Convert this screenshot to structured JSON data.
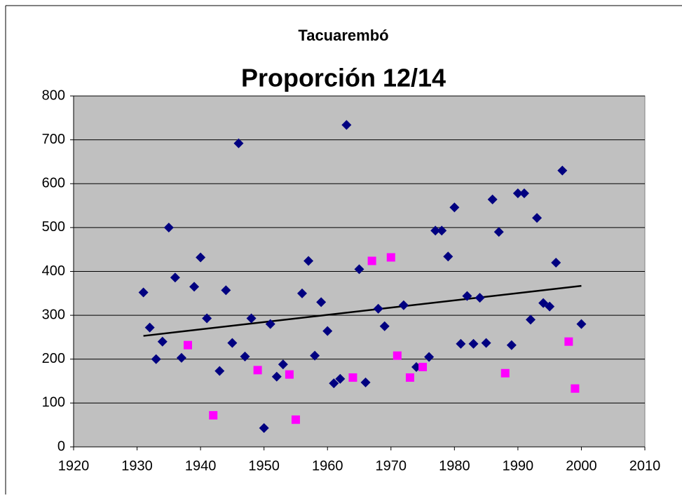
{
  "chart_data": {
    "type": "scatter",
    "title": "Tacuarembó",
    "subtitle": "Proporción 12/14",
    "xlim": [
      1920,
      2010
    ],
    "xticks": [
      1920,
      1930,
      1940,
      1950,
      1960,
      1970,
      1980,
      1990,
      2000,
      2010
    ],
    "ylim": [
      0,
      800
    ],
    "yticks": [
      0,
      100,
      200,
      300,
      400,
      500,
      600,
      700,
      800
    ],
    "grid": true,
    "plot_background": "#c0c0c0",
    "series": [
      {
        "color": "#000080",
        "marker": "diamond",
        "x": [
          1931,
          1932,
          1933,
          1934,
          1935,
          1936,
          1937,
          1939,
          1940,
          1941,
          1943,
          1944,
          1945,
          1946,
          1947,
          1948,
          1950,
          1951,
          1952,
          1953,
          1956,
          1957,
          1958,
          1959,
          1960,
          1961,
          1962,
          1963,
          1965,
          1966,
          1968,
          1969,
          1972,
          1974,
          1976,
          1977,
          1978,
          1979,
          1980,
          1981,
          1982,
          1983,
          1984,
          1985,
          1986,
          1987,
          1989,
          1990,
          1991,
          1992,
          1993,
          1994,
          1995,
          1996,
          1997,
          2000
        ],
        "values": [
          352,
          272,
          200,
          240,
          500,
          386,
          203,
          365,
          432,
          293,
          173,
          357,
          237,
          692,
          206,
          293,
          43,
          280,
          160,
          188,
          350,
          424,
          208,
          330,
          264,
          145,
          155,
          734,
          405,
          147,
          315,
          275,
          323,
          182,
          205,
          493,
          493,
          434,
          546,
          235,
          344,
          235,
          340,
          237,
          564,
          490,
          232,
          578,
          578,
          290,
          522,
          328,
          320,
          420,
          630,
          280
        ]
      },
      {
        "color": "#ff00ff",
        "marker": "square",
        "x": [
          1938,
          1942,
          1949,
          1954,
          1955,
          1964,
          1967,
          1970,
          1971,
          1973,
          1975,
          1988,
          1998,
          1999
        ],
        "values": [
          232,
          72,
          175,
          165,
          62,
          158,
          424,
          432,
          208,
          158,
          182,
          168,
          240,
          133
        ]
      }
    ],
    "trendline": {
      "color": "#000000",
      "x": [
        1931,
        2000
      ],
      "values": [
        253,
        367
      ]
    }
  }
}
